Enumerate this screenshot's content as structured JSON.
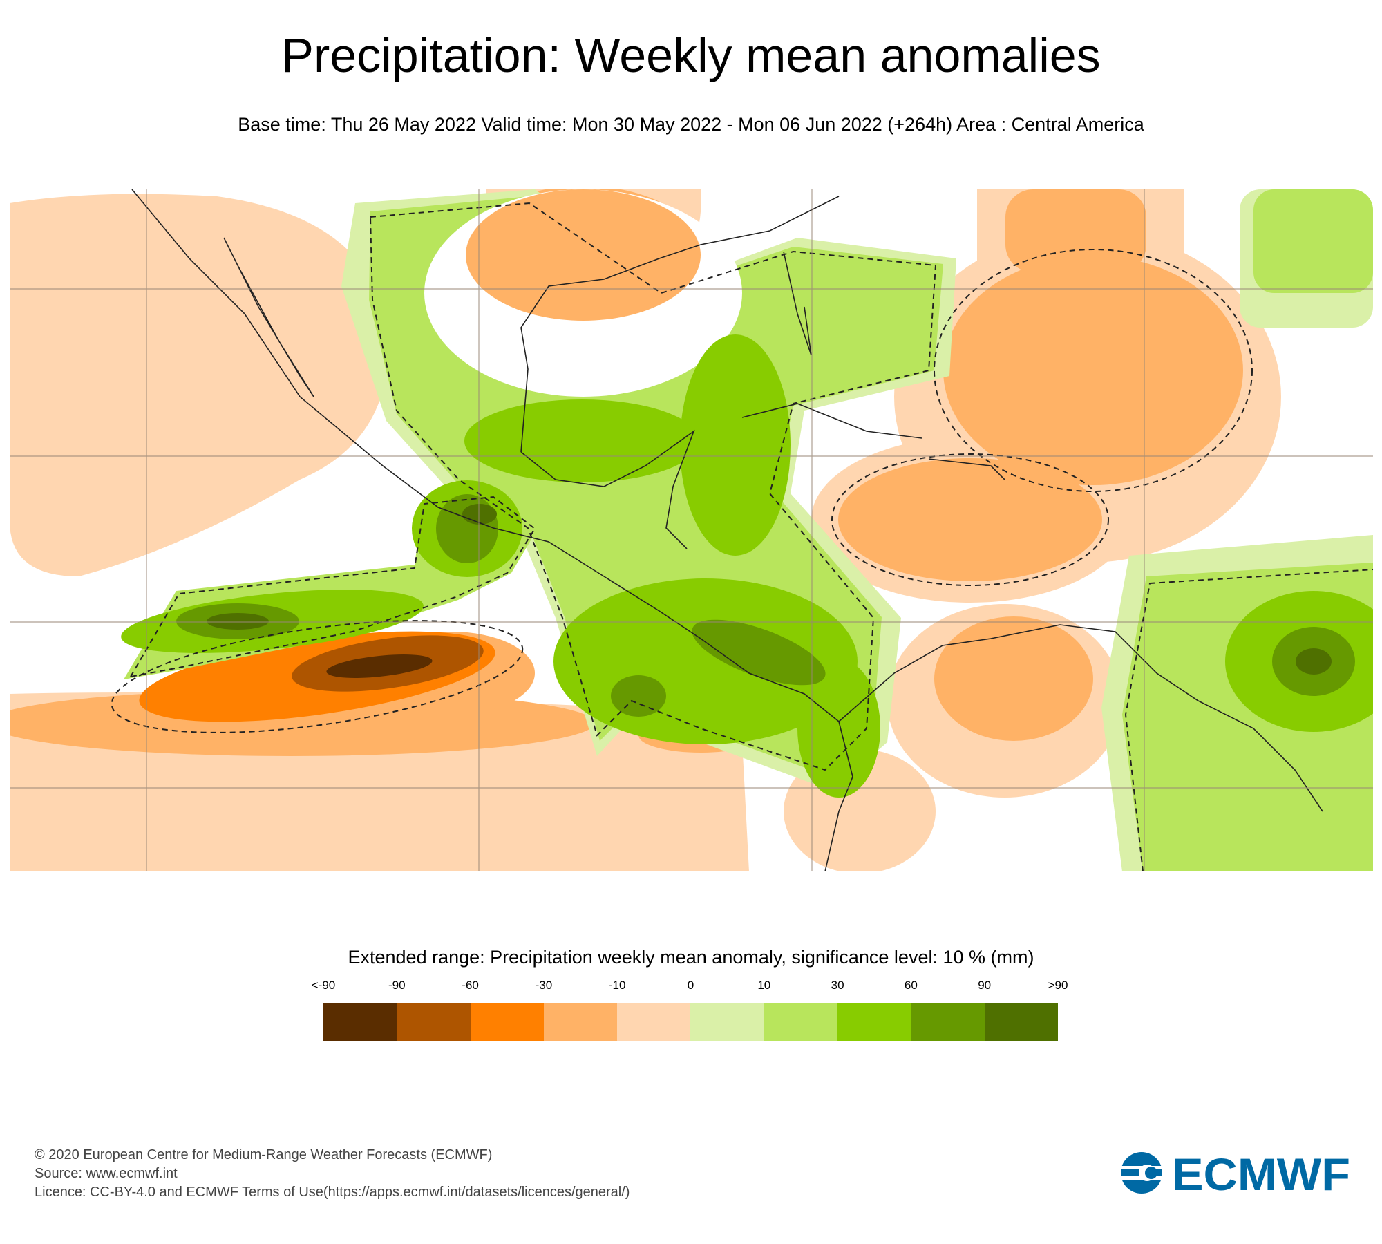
{
  "title": "Precipitation: Weekly mean anomalies",
  "subtitle": "Base time: Thu 26 May 2022 Valid time: Mon 30 May 2022 - Mon 06 Jun 2022 (+264h) Area : Central America",
  "legend": {
    "title": "Extended range: Precipitation weekly mean anomaly, significance level: 10 % (mm)",
    "labels": [
      "<-90",
      "-90",
      "-60",
      "-30",
      "-10",
      "0",
      "10",
      "30",
      "60",
      "90",
      ">90"
    ],
    "colors": [
      "#5a2d00",
      "#ae5500",
      "#ff8000",
      "#ffb266",
      "#ffd6b0",
      "#daf0a8",
      "#b8e55c",
      "#88cc00",
      "#669900",
      "#4f7000"
    ]
  },
  "footer": {
    "copyright": "© 2020 European Centre for Medium-Range Weather Forecasts (ECMWF)",
    "source": "Source: www.ecmwf.int",
    "licence": "Licence: CC-BY-4.0 and ECMWF Terms of Use(https://apps.ecmwf.int/datasets/licences/general/)"
  },
  "logo": {
    "text": "ECMWF",
    "color": "#0069a4"
  }
}
